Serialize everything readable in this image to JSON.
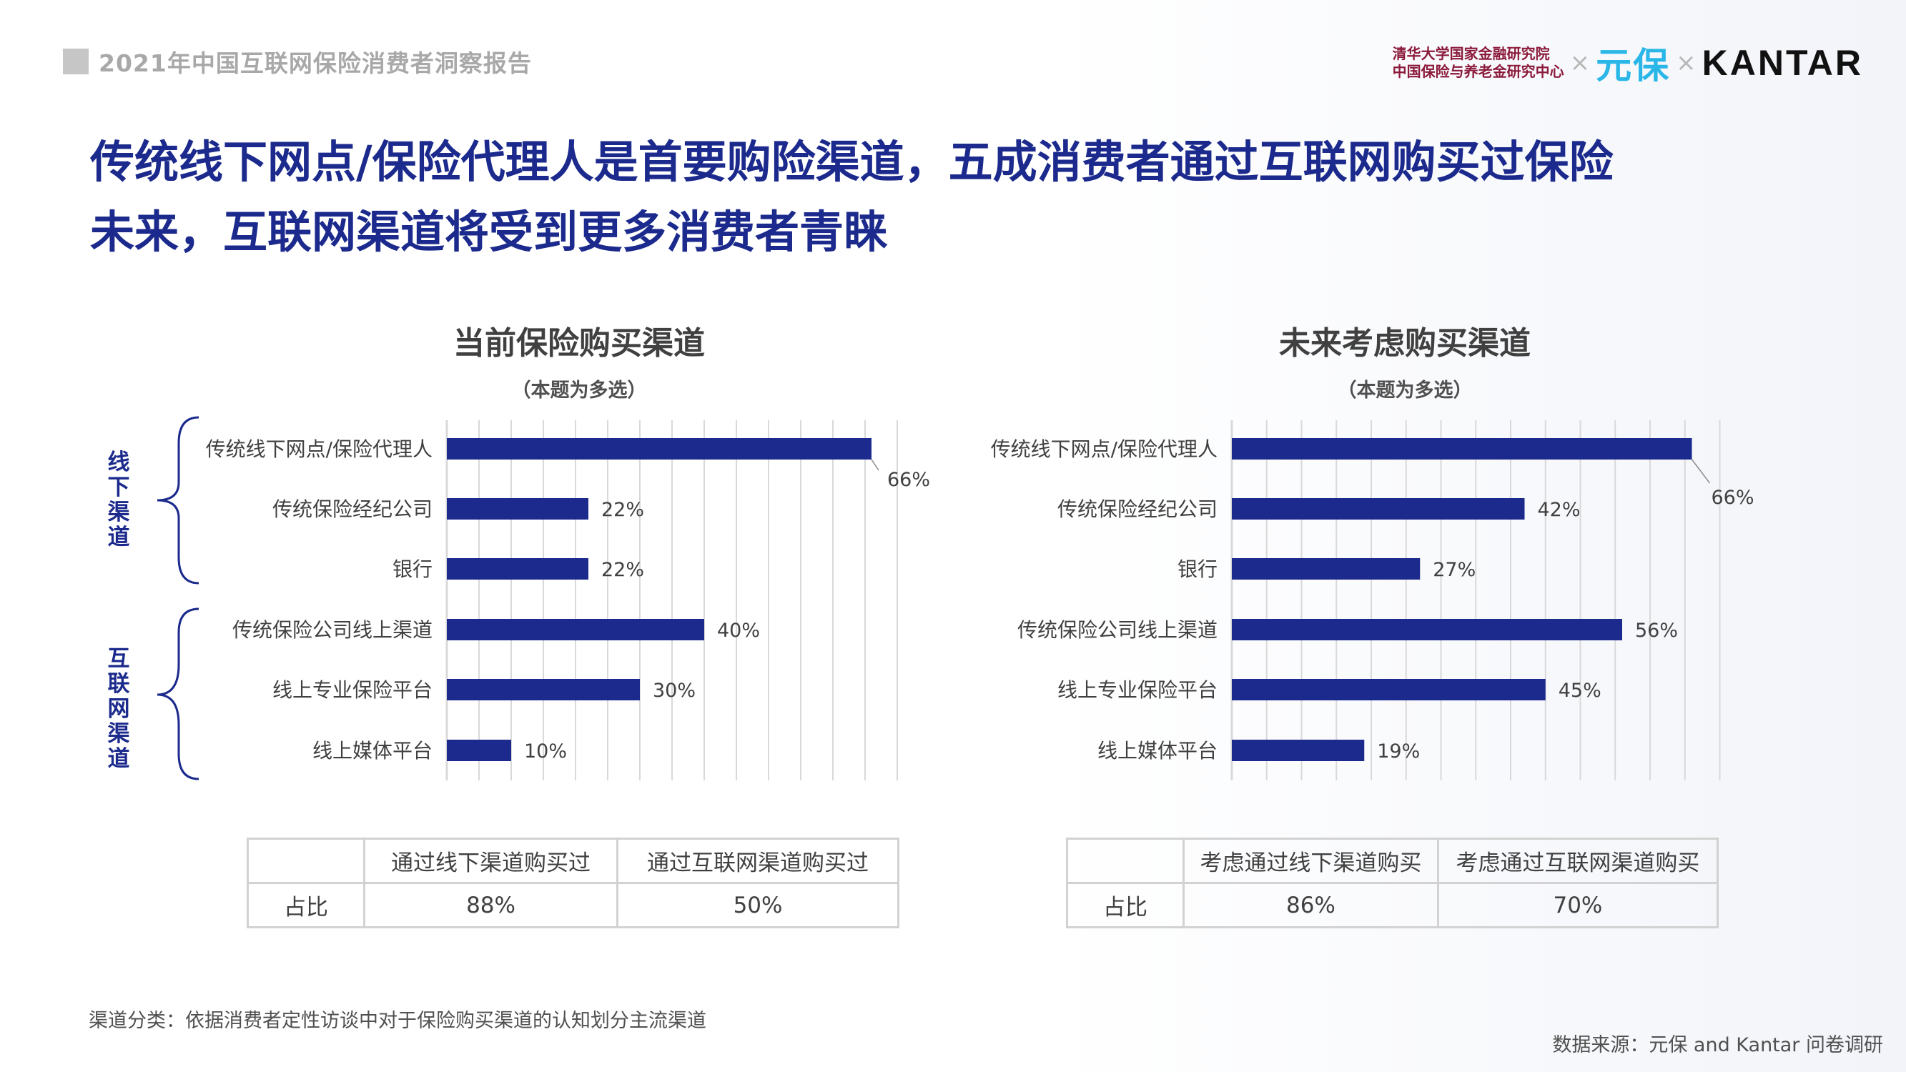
{
  "header": {
    "report_title": "2021年中国互联网保险消费者洞察报告",
    "logo_tsinghua_line1": "清华大学国家金融研究院",
    "logo_tsinghua_line2": "中国保险与养老金研究中心",
    "logo_sep": "×",
    "logo_yuanbao": "元保",
    "logo_kantar": "KANTAR"
  },
  "main_title": {
    "line1": "传统线下网点/保险代理人是首要购险渠道，五成消费者通过互联网购买过保险",
    "line2": "未来，互联网渠道将受到更多消费者青睐"
  },
  "group_labels": {
    "offline": [
      "线",
      "下",
      "渠",
      "道"
    ],
    "online": [
      "互",
      "联",
      "网",
      "渠",
      "道"
    ]
  },
  "colors": {
    "bar": "#1b2a8c",
    "title": "#1b2a8c",
    "grid": "#d9d9d9"
  },
  "chart_data": [
    {
      "type": "bar",
      "orientation": "horizontal",
      "title": "当前保险购买渠道",
      "subtitle": "（本题为多选）",
      "categories": [
        "传统线下网点/保险代理人",
        "传统保险经纪公司",
        "银行",
        "传统保险公司线上渠道",
        "线上专业保险平台",
        "线上媒体平台"
      ],
      "values": [
        66,
        22,
        22,
        40,
        30,
        10
      ],
      "labels": [
        "66%",
        "22%",
        "22%",
        "40%",
        "30%",
        "10%"
      ],
      "xlim": [
        0,
        70
      ],
      "grid": true
    },
    {
      "type": "bar",
      "orientation": "horizontal",
      "title": "未来考虑购买渠道",
      "subtitle": "（本题为多选）",
      "categories": [
        "传统线下网点/保险代理人",
        "传统保险经纪公司",
        "银行",
        "传统保险公司线上渠道",
        "线上专业保险平台",
        "线上媒体平台"
      ],
      "values": [
        66,
        42,
        27,
        56,
        45,
        19
      ],
      "labels": [
        "66%",
        "42%",
        "27%",
        "56%",
        "45%",
        "19%"
      ],
      "xlim": [
        0,
        70
      ],
      "grid": true
    }
  ],
  "tables": [
    {
      "headers": [
        "",
        "通过线下渠道购买过",
        "通过互联网渠道购买过"
      ],
      "row_label": "占比",
      "values": [
        "88%",
        "50%"
      ]
    },
    {
      "headers": [
        "",
        "考虑通过线下渠道购买",
        "考虑通过互联网渠道购买"
      ],
      "row_label": "占比",
      "values": [
        "86%",
        "70%"
      ]
    }
  ],
  "footer": {
    "note": "渠道分类：依据消费者定性访谈中对于保险购买渠道的认知划分主流渠道",
    "source": "数据来源：元保 and Kantar 问卷调研"
  }
}
